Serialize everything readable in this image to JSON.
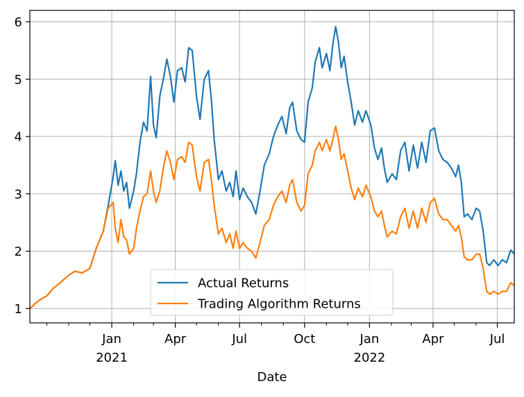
{
  "chart_data": {
    "type": "line",
    "title": "",
    "xlabel": "Date",
    "ylabel": "",
    "grid": true,
    "legend_position": "lower-center",
    "x_range": [
      "2020-09-07",
      "2022-07-25"
    ],
    "ylim": [
      0.75,
      6.2
    ],
    "x_ticks": [
      {
        "date": "2021-01-01",
        "label": "Jan",
        "year": "2021"
      },
      {
        "date": "2021-04-01",
        "label": "Apr",
        "year": ""
      },
      {
        "date": "2021-07-01",
        "label": "Jul",
        "year": ""
      },
      {
        "date": "2021-10-01",
        "label": "Oct",
        "year": ""
      },
      {
        "date": "2022-01-01",
        "label": "Jan",
        "year": "2022"
      },
      {
        "date": "2022-04-01",
        "label": "Apr",
        "year": ""
      },
      {
        "date": "2022-07-01",
        "label": "Jul",
        "year": ""
      }
    ],
    "y_ticks": [
      1,
      2,
      3,
      4,
      5,
      6
    ],
    "series": [
      {
        "name": "Actual Returns",
        "color": "#1f77b4",
        "points": [
          [
            "2020-09-07",
            1.0
          ],
          [
            "2020-09-14",
            1.08
          ],
          [
            "2020-09-21",
            1.15
          ],
          [
            "2020-10-01",
            1.22
          ],
          [
            "2020-10-10",
            1.35
          ],
          [
            "2020-10-20",
            1.45
          ],
          [
            "2020-11-01",
            1.58
          ],
          [
            "2020-11-10",
            1.65
          ],
          [
            "2020-11-20",
            1.62
          ],
          [
            "2020-12-01",
            1.7
          ],
          [
            "2020-12-10",
            2.05
          ],
          [
            "2020-12-20",
            2.35
          ],
          [
            "2020-12-27",
            2.8
          ],
          [
            "2021-01-03",
            3.3
          ],
          [
            "2021-01-06",
            3.58
          ],
          [
            "2021-01-10",
            3.15
          ],
          [
            "2021-01-14",
            3.4
          ],
          [
            "2021-01-18",
            3.05
          ],
          [
            "2021-01-22",
            3.2
          ],
          [
            "2021-01-26",
            2.75
          ],
          [
            "2021-02-01",
            3.05
          ],
          [
            "2021-02-05",
            3.35
          ],
          [
            "2021-02-10",
            3.9
          ],
          [
            "2021-02-15",
            4.25
          ],
          [
            "2021-02-20",
            4.1
          ],
          [
            "2021-02-25",
            5.05
          ],
          [
            "2021-03-01",
            4.2
          ],
          [
            "2021-03-05",
            3.98
          ],
          [
            "2021-03-10",
            4.7
          ],
          [
            "2021-03-15",
            5.0
          ],
          [
            "2021-03-20",
            5.35
          ],
          [
            "2021-03-25",
            5.05
          ],
          [
            "2021-03-30",
            4.6
          ],
          [
            "2021-04-04",
            5.15
          ],
          [
            "2021-04-10",
            5.2
          ],
          [
            "2021-04-15",
            4.95
          ],
          [
            "2021-04-20",
            5.55
          ],
          [
            "2021-04-25",
            5.5
          ],
          [
            "2021-05-01",
            4.7
          ],
          [
            "2021-05-06",
            4.3
          ],
          [
            "2021-05-12",
            5.0
          ],
          [
            "2021-05-18",
            5.15
          ],
          [
            "2021-05-22",
            4.65
          ],
          [
            "2021-05-26",
            3.95
          ],
          [
            "2021-06-01",
            3.25
          ],
          [
            "2021-06-06",
            3.4
          ],
          [
            "2021-06-12",
            3.05
          ],
          [
            "2021-06-17",
            3.2
          ],
          [
            "2021-06-22",
            2.95
          ],
          [
            "2021-06-26",
            3.4
          ],
          [
            "2021-07-01",
            2.9
          ],
          [
            "2021-07-06",
            3.1
          ],
          [
            "2021-07-12",
            2.95
          ],
          [
            "2021-07-18",
            2.85
          ],
          [
            "2021-07-24",
            2.65
          ],
          [
            "2021-07-30",
            3.05
          ],
          [
            "2021-08-05",
            3.5
          ],
          [
            "2021-08-12",
            3.7
          ],
          [
            "2021-08-18",
            4.0
          ],
          [
            "2021-08-24",
            4.2
          ],
          [
            "2021-08-30",
            4.35
          ],
          [
            "2021-09-05",
            4.05
          ],
          [
            "2021-09-10",
            4.5
          ],
          [
            "2021-09-14",
            4.6
          ],
          [
            "2021-09-20",
            4.1
          ],
          [
            "2021-09-26",
            3.95
          ],
          [
            "2021-10-01",
            3.9
          ],
          [
            "2021-10-06",
            4.6
          ],
          [
            "2021-10-12",
            4.85
          ],
          [
            "2021-10-16",
            5.3
          ],
          [
            "2021-10-22",
            5.55
          ],
          [
            "2021-10-26",
            5.2
          ],
          [
            "2021-11-01",
            5.45
          ],
          [
            "2021-11-06",
            5.15
          ],
          [
            "2021-11-10",
            5.6
          ],
          [
            "2021-11-14",
            5.92
          ],
          [
            "2021-11-18",
            5.65
          ],
          [
            "2021-11-22",
            5.2
          ],
          [
            "2021-11-26",
            5.4
          ],
          [
            "2021-12-01",
            4.95
          ],
          [
            "2021-12-06",
            4.6
          ],
          [
            "2021-12-11",
            4.2
          ],
          [
            "2021-12-16",
            4.45
          ],
          [
            "2021-12-22",
            4.25
          ],
          [
            "2021-12-27",
            4.45
          ],
          [
            "2022-01-03",
            4.2
          ],
          [
            "2022-01-08",
            3.8
          ],
          [
            "2022-01-13",
            3.6
          ],
          [
            "2022-01-18",
            3.8
          ],
          [
            "2022-01-22",
            3.45
          ],
          [
            "2022-01-26",
            3.2
          ],
          [
            "2022-02-02",
            3.35
          ],
          [
            "2022-02-08",
            3.25
          ],
          [
            "2022-02-14",
            3.75
          ],
          [
            "2022-02-20",
            3.9
          ],
          [
            "2022-02-26",
            3.4
          ],
          [
            "2022-03-04",
            3.85
          ],
          [
            "2022-03-10",
            3.45
          ],
          [
            "2022-03-16",
            3.9
          ],
          [
            "2022-03-22",
            3.55
          ],
          [
            "2022-03-28",
            4.1
          ],
          [
            "2022-04-03",
            4.15
          ],
          [
            "2022-04-09",
            3.75
          ],
          [
            "2022-04-15",
            3.6
          ],
          [
            "2022-04-21",
            3.55
          ],
          [
            "2022-04-27",
            3.45
          ],
          [
            "2022-05-03",
            3.3
          ],
          [
            "2022-05-07",
            3.5
          ],
          [
            "2022-05-11",
            3.2
          ],
          [
            "2022-05-15",
            2.6
          ],
          [
            "2022-05-20",
            2.65
          ],
          [
            "2022-05-26",
            2.55
          ],
          [
            "2022-06-01",
            2.75
          ],
          [
            "2022-06-06",
            2.7
          ],
          [
            "2022-06-11",
            2.35
          ],
          [
            "2022-06-16",
            1.8
          ],
          [
            "2022-06-20",
            1.75
          ],
          [
            "2022-06-26",
            1.85
          ],
          [
            "2022-07-02",
            1.75
          ],
          [
            "2022-07-08",
            1.85
          ],
          [
            "2022-07-14",
            1.8
          ],
          [
            "2022-07-20",
            2.02
          ],
          [
            "2022-07-25",
            1.95
          ]
        ]
      },
      {
        "name": "Trading Algorithm Returns",
        "color": "#ff7f0e",
        "points": [
          [
            "2020-09-07",
            1.0
          ],
          [
            "2020-09-14",
            1.08
          ],
          [
            "2020-09-21",
            1.15
          ],
          [
            "2020-10-01",
            1.22
          ],
          [
            "2020-10-10",
            1.35
          ],
          [
            "2020-10-20",
            1.45
          ],
          [
            "2020-11-01",
            1.58
          ],
          [
            "2020-11-10",
            1.65
          ],
          [
            "2020-11-20",
            1.62
          ],
          [
            "2020-12-01",
            1.7
          ],
          [
            "2020-12-10",
            2.05
          ],
          [
            "2020-12-20",
            2.35
          ],
          [
            "2020-12-27",
            2.75
          ],
          [
            "2021-01-03",
            2.85
          ],
          [
            "2021-01-06",
            2.4
          ],
          [
            "2021-01-10",
            2.15
          ],
          [
            "2021-01-14",
            2.55
          ],
          [
            "2021-01-18",
            2.25
          ],
          [
            "2021-01-22",
            2.2
          ],
          [
            "2021-01-26",
            1.95
          ],
          [
            "2021-02-01",
            2.05
          ],
          [
            "2021-02-05",
            2.4
          ],
          [
            "2021-02-10",
            2.7
          ],
          [
            "2021-02-15",
            2.95
          ],
          [
            "2021-02-20",
            3.0
          ],
          [
            "2021-02-25",
            3.4
          ],
          [
            "2021-03-01",
            3.05
          ],
          [
            "2021-03-05",
            2.85
          ],
          [
            "2021-03-10",
            3.05
          ],
          [
            "2021-03-15",
            3.45
          ],
          [
            "2021-03-20",
            3.75
          ],
          [
            "2021-03-25",
            3.55
          ],
          [
            "2021-03-30",
            3.25
          ],
          [
            "2021-04-04",
            3.6
          ],
          [
            "2021-04-10",
            3.65
          ],
          [
            "2021-04-15",
            3.55
          ],
          [
            "2021-04-20",
            3.9
          ],
          [
            "2021-04-25",
            3.85
          ],
          [
            "2021-05-01",
            3.3
          ],
          [
            "2021-05-06",
            3.05
          ],
          [
            "2021-05-12",
            3.55
          ],
          [
            "2021-05-18",
            3.6
          ],
          [
            "2021-05-22",
            3.25
          ],
          [
            "2021-05-26",
            2.8
          ],
          [
            "2021-06-01",
            2.3
          ],
          [
            "2021-06-06",
            2.4
          ],
          [
            "2021-06-12",
            2.15
          ],
          [
            "2021-06-17",
            2.3
          ],
          [
            "2021-06-22",
            2.05
          ],
          [
            "2021-06-26",
            2.35
          ],
          [
            "2021-07-01",
            2.05
          ],
          [
            "2021-07-06",
            2.15
          ],
          [
            "2021-07-12",
            2.05
          ],
          [
            "2021-07-18",
            2.0
          ],
          [
            "2021-07-24",
            1.88
          ],
          [
            "2021-07-30",
            2.15
          ],
          [
            "2021-08-05",
            2.45
          ],
          [
            "2021-08-12",
            2.55
          ],
          [
            "2021-08-18",
            2.8
          ],
          [
            "2021-08-24",
            2.95
          ],
          [
            "2021-08-30",
            3.05
          ],
          [
            "2021-09-05",
            2.85
          ],
          [
            "2021-09-10",
            3.15
          ],
          [
            "2021-09-14",
            3.25
          ],
          [
            "2021-09-20",
            2.85
          ],
          [
            "2021-09-26",
            2.7
          ],
          [
            "2021-10-01",
            2.8
          ],
          [
            "2021-10-06",
            3.35
          ],
          [
            "2021-10-12",
            3.5
          ],
          [
            "2021-10-16",
            3.75
          ],
          [
            "2021-10-22",
            3.9
          ],
          [
            "2021-10-26",
            3.75
          ],
          [
            "2021-11-01",
            3.95
          ],
          [
            "2021-11-06",
            3.75
          ],
          [
            "2021-11-10",
            3.95
          ],
          [
            "2021-11-14",
            4.18
          ],
          [
            "2021-11-18",
            3.95
          ],
          [
            "2021-11-22",
            3.6
          ],
          [
            "2021-11-26",
            3.7
          ],
          [
            "2021-12-01",
            3.4
          ],
          [
            "2021-12-06",
            3.1
          ],
          [
            "2021-12-11",
            2.9
          ],
          [
            "2021-12-16",
            3.1
          ],
          [
            "2021-12-22",
            2.95
          ],
          [
            "2021-12-27",
            3.15
          ],
          [
            "2022-01-03",
            2.95
          ],
          [
            "2022-01-08",
            2.7
          ],
          [
            "2022-01-13",
            2.6
          ],
          [
            "2022-01-18",
            2.7
          ],
          [
            "2022-01-22",
            2.45
          ],
          [
            "2022-01-26",
            2.25
          ],
          [
            "2022-02-02",
            2.35
          ],
          [
            "2022-02-08",
            2.3
          ],
          [
            "2022-02-14",
            2.6
          ],
          [
            "2022-02-20",
            2.75
          ],
          [
            "2022-02-26",
            2.4
          ],
          [
            "2022-03-04",
            2.7
          ],
          [
            "2022-03-10",
            2.4
          ],
          [
            "2022-03-16",
            2.75
          ],
          [
            "2022-03-22",
            2.5
          ],
          [
            "2022-03-28",
            2.85
          ],
          [
            "2022-04-03",
            2.92
          ],
          [
            "2022-04-09",
            2.65
          ],
          [
            "2022-04-15",
            2.55
          ],
          [
            "2022-04-21",
            2.55
          ],
          [
            "2022-04-27",
            2.45
          ],
          [
            "2022-05-03",
            2.35
          ],
          [
            "2022-05-07",
            2.45
          ],
          [
            "2022-05-11",
            2.25
          ],
          [
            "2022-05-15",
            1.9
          ],
          [
            "2022-05-20",
            1.85
          ],
          [
            "2022-05-26",
            1.85
          ],
          [
            "2022-06-01",
            1.95
          ],
          [
            "2022-06-06",
            1.95
          ],
          [
            "2022-06-11",
            1.7
          ],
          [
            "2022-06-16",
            1.3
          ],
          [
            "2022-06-20",
            1.25
          ],
          [
            "2022-06-26",
            1.3
          ],
          [
            "2022-07-02",
            1.25
          ],
          [
            "2022-07-08",
            1.3
          ],
          [
            "2022-07-14",
            1.3
          ],
          [
            "2022-07-20",
            1.45
          ],
          [
            "2022-07-25",
            1.4
          ]
        ]
      }
    ]
  }
}
